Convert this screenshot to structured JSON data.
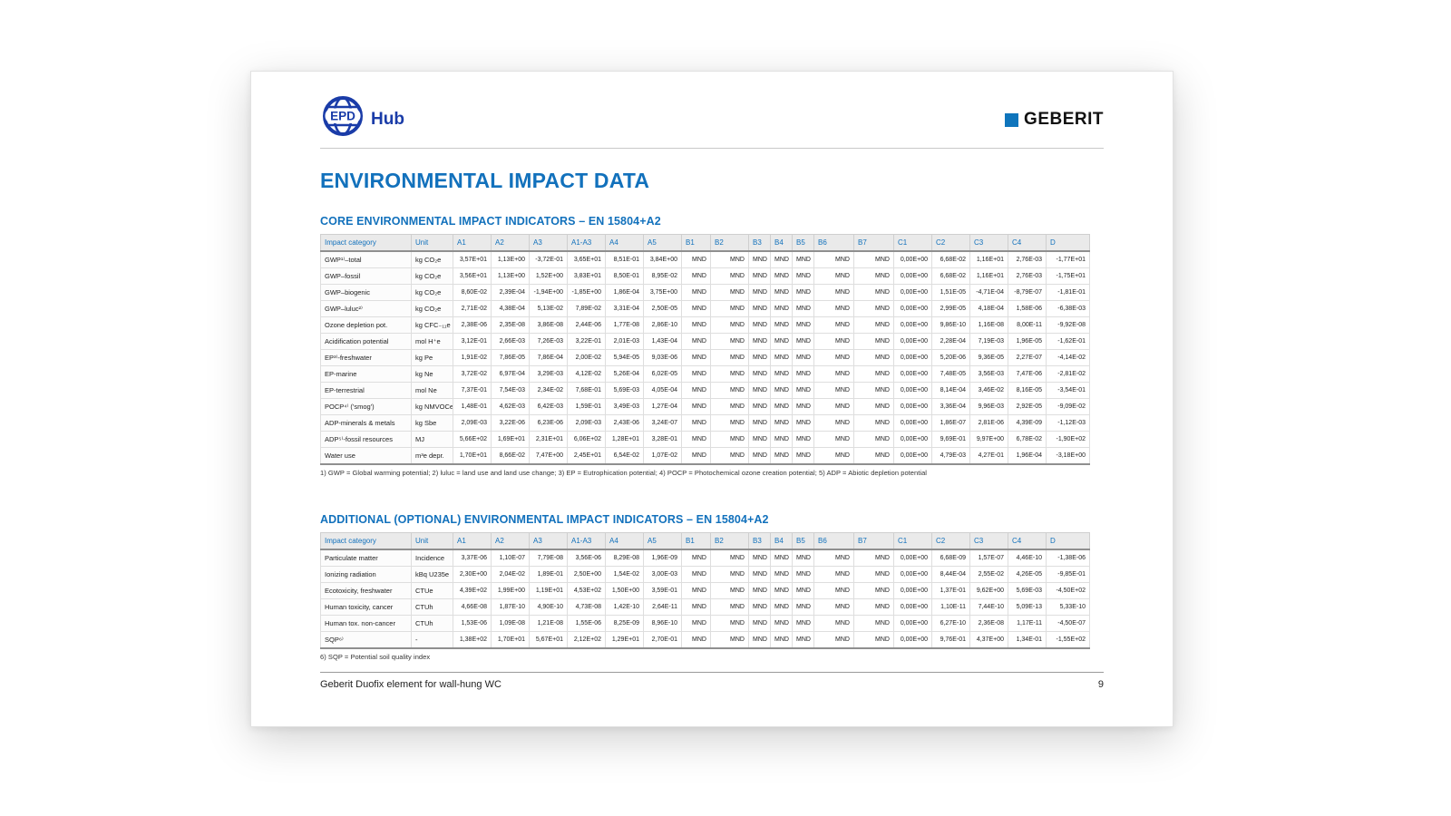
{
  "page": {
    "header": {
      "epd_logo": {
        "epd": "EPD",
        "hub": "Hub"
      },
      "brand": "GEBERIT"
    },
    "title": "ENVIRONMENTAL IMPACT DATA",
    "sections": [
      {
        "heading": "CORE ENVIRONMENTAL IMPACT INDICATORS – EN 15804+A2",
        "columns": [
          "Impact category",
          "Unit",
          "A1",
          "A2",
          "A3",
          "A1-A3",
          "A4",
          "A5",
          "B1",
          "B2",
          "B3",
          "B4",
          "B5",
          "B6",
          "B7",
          "C1",
          "C2",
          "C3",
          "C4",
          "D"
        ],
        "rows": [
          {
            "category": "GWP¹⁾–total",
            "unit": "kg CO₂e",
            "values": [
              "3,57E+01",
              "1,13E+00",
              "-3,72E-01",
              "3,65E+01",
              "8,51E-01",
              "3,84E+00",
              "MND",
              "MND",
              "MND",
              "MND",
              "MND",
              "MND",
              "MND",
              "0,00E+00",
              "6,68E-02",
              "1,16E+01",
              "2,76E-03",
              "-1,77E+01"
            ]
          },
          {
            "category": "GWP–fossil",
            "unit": "kg CO₂e",
            "values": [
              "3,56E+01",
              "1,13E+00",
              "1,52E+00",
              "3,83E+01",
              "8,50E-01",
              "8,95E-02",
              "MND",
              "MND",
              "MND",
              "MND",
              "MND",
              "MND",
              "MND",
              "0,00E+00",
              "6,68E-02",
              "1,16E+01",
              "2,76E-03",
              "-1,75E+01"
            ]
          },
          {
            "category": "GWP–biogenic",
            "unit": "kg CO₂e",
            "values": [
              "8,60E-02",
              "2,39E-04",
              "-1,94E+00",
              "-1,85E+00",
              "1,86E-04",
              "3,75E+00",
              "MND",
              "MND",
              "MND",
              "MND",
              "MND",
              "MND",
              "MND",
              "0,00E+00",
              "1,51E-05",
              "-4,71E-04",
              "-8,79E-07",
              "-1,81E-01"
            ]
          },
          {
            "category": "GWP–luluc²⁾",
            "unit": "kg CO₂e",
            "values": [
              "2,71E-02",
              "4,38E-04",
              "5,13E-02",
              "7,89E-02",
              "3,31E-04",
              "2,50E-05",
              "MND",
              "MND",
              "MND",
              "MND",
              "MND",
              "MND",
              "MND",
              "0,00E+00",
              "2,99E-05",
              "4,18E-04",
              "1,58E-06",
              "-6,38E-03"
            ]
          },
          {
            "category": "Ozone depletion pot.",
            "unit": "kg CFC₋₁₁e",
            "values": [
              "2,38E-06",
              "2,35E-08",
              "3,86E-08",
              "2,44E-06",
              "1,77E-08",
              "2,86E-10",
              "MND",
              "MND",
              "MND",
              "MND",
              "MND",
              "MND",
              "MND",
              "0,00E+00",
              "9,86E-10",
              "1,16E-08",
              "8,00E-11",
              "-9,92E-08"
            ]
          },
          {
            "category": "Acidification potential",
            "unit": "mol H⁺e",
            "values": [
              "3,12E-01",
              "2,66E-03",
              "7,26E-03",
              "3,22E-01",
              "2,01E-03",
              "1,43E-04",
              "MND",
              "MND",
              "MND",
              "MND",
              "MND",
              "MND",
              "MND",
              "0,00E+00",
              "2,28E-04",
              "7,19E-03",
              "1,96E-05",
              "-1,62E-01"
            ]
          },
          {
            "category": "EP³⁾-freshwater",
            "unit": "kg Pe",
            "values": [
              "1,91E-02",
              "7,86E-05",
              "7,86E-04",
              "2,00E-02",
              "5,94E-05",
              "9,03E-06",
              "MND",
              "MND",
              "MND",
              "MND",
              "MND",
              "MND",
              "MND",
              "0,00E+00",
              "5,20E-06",
              "9,36E-05",
              "2,27E-07",
              "-4,14E-02"
            ]
          },
          {
            "category": "EP-marine",
            "unit": "kg Ne",
            "values": [
              "3,72E-02",
              "6,97E-04",
              "3,29E-03",
              "4,12E-02",
              "5,26E-04",
              "6,02E-05",
              "MND",
              "MND",
              "MND",
              "MND",
              "MND",
              "MND",
              "MND",
              "0,00E+00",
              "7,48E-05",
              "3,56E-03",
              "7,47E-06",
              "-2,81E-02"
            ]
          },
          {
            "category": "EP-terrestrial",
            "unit": "mol Ne",
            "values": [
              "7,37E-01",
              "7,54E-03",
              "2,34E-02",
              "7,68E-01",
              "5,69E-03",
              "4,05E-04",
              "MND",
              "MND",
              "MND",
              "MND",
              "MND",
              "MND",
              "MND",
              "0,00E+00",
              "8,14E-04",
              "3,46E-02",
              "8,16E-05",
              "-3,54E-01"
            ]
          },
          {
            "category": "POCP⁴⁾ ('smog')",
            "unit": "kg NMVOCe",
            "values": [
              "1,48E-01",
              "4,62E-03",
              "6,42E-03",
              "1,59E-01",
              "3,49E-03",
              "1,27E-04",
              "MND",
              "MND",
              "MND",
              "MND",
              "MND",
              "MND",
              "MND",
              "0,00E+00",
              "3,36E-04",
              "9,96E-03",
              "2,92E-05",
              "-9,09E-02"
            ]
          },
          {
            "category": "ADP-minerals & metals",
            "unit": "kg Sbe",
            "values": [
              "2,09E-03",
              "3,22E-06",
              "6,23E-06",
              "2,09E-03",
              "2,43E-06",
              "3,24E-07",
              "MND",
              "MND",
              "MND",
              "MND",
              "MND",
              "MND",
              "MND",
              "0,00E+00",
              "1,86E-07",
              "2,81E-06",
              "4,39E-09",
              "-1,12E-03"
            ]
          },
          {
            "category": "ADP⁵⁾-fossil resources",
            "unit": "MJ",
            "values": [
              "5,66E+02",
              "1,69E+01",
              "2,31E+01",
              "6,06E+02",
              "1,28E+01",
              "3,28E-01",
              "MND",
              "MND",
              "MND",
              "MND",
              "MND",
              "MND",
              "MND",
              "0,00E+00",
              "9,69E-01",
              "9,97E+00",
              "6,78E-02",
              "-1,90E+02"
            ]
          },
          {
            "category": "Water use",
            "unit": "m³e depr.",
            "values": [
              "1,70E+01",
              "8,66E-02",
              "7,47E+00",
              "2,45E+01",
              "6,54E-02",
              "1,07E-02",
              "MND",
              "MND",
              "MND",
              "MND",
              "MND",
              "MND",
              "MND",
              "0,00E+00",
              "4,79E-03",
              "4,27E-01",
              "1,96E-04",
              "-3,18E+00"
            ]
          }
        ],
        "footnote": "1) GWP = Global warming potential; 2) luluc = land use and land use change; 3) EP = Eutrophication potential; 4) POCP = Photochemical ozone creation potential; 5) ADP = Abiotic depletion potential"
      },
      {
        "heading": "ADDITIONAL (OPTIONAL) ENVIRONMENTAL IMPACT INDICATORS – EN 15804+A2",
        "columns": [
          "Impact category",
          "Unit",
          "A1",
          "A2",
          "A3",
          "A1-A3",
          "A4",
          "A5",
          "B1",
          "B2",
          "B3",
          "B4",
          "B5",
          "B6",
          "B7",
          "C1",
          "C2",
          "C3",
          "C4",
          "D"
        ],
        "rows": [
          {
            "category": "Particulate matter",
            "unit": "Incidence",
            "values": [
              "3,37E-06",
              "1,10E-07",
              "7,79E-08",
              "3,56E-06",
              "8,29E-08",
              "1,96E-09",
              "MND",
              "MND",
              "MND",
              "MND",
              "MND",
              "MND",
              "MND",
              "0,00E+00",
              "6,68E-09",
              "1,57E-07",
              "4,46E-10",
              "-1,38E-06"
            ]
          },
          {
            "category": "Ionizing radiation",
            "unit": "kBq U235e",
            "values": [
              "2,30E+00",
              "2,04E-02",
              "1,89E-01",
              "2,50E+00",
              "1,54E-02",
              "3,00E-03",
              "MND",
              "MND",
              "MND",
              "MND",
              "MND",
              "MND",
              "MND",
              "0,00E+00",
              "8,44E-04",
              "2,55E-02",
              "4,26E-05",
              "-9,85E-01"
            ]
          },
          {
            "category": "Ecotoxicity, freshwater",
            "unit": "CTUe",
            "values": [
              "4,39E+02",
              "1,99E+00",
              "1,19E+01",
              "4,53E+02",
              "1,50E+00",
              "3,59E-01",
              "MND",
              "MND",
              "MND",
              "MND",
              "MND",
              "MND",
              "MND",
              "0,00E+00",
              "1,37E-01",
              "9,62E+00",
              "5,69E-03",
              "-4,50E+02"
            ]
          },
          {
            "category": "Human toxicity, cancer",
            "unit": "CTUh",
            "values": [
              "4,66E-08",
              "1,87E-10",
              "4,90E-10",
              "4,73E-08",
              "1,42E-10",
              "2,64E-11",
              "MND",
              "MND",
              "MND",
              "MND",
              "MND",
              "MND",
              "MND",
              "0,00E+00",
              "1,10E-11",
              "7,44E-10",
              "5,09E-13",
              "5,33E-10"
            ]
          },
          {
            "category": "Human tox. non-cancer",
            "unit": "CTUh",
            "values": [
              "1,53E-06",
              "1,09E-08",
              "1,21E-08",
              "1,55E-06",
              "8,25E-09",
              "8,96E-10",
              "MND",
              "MND",
              "MND",
              "MND",
              "MND",
              "MND",
              "MND",
              "0,00E+00",
              "6,27E-10",
              "2,36E-08",
              "1,17E-11",
              "-4,50E-07"
            ]
          },
          {
            "category": "SQP⁶⁾",
            "unit": "-",
            "values": [
              "1,38E+02",
              "1,70E+01",
              "5,67E+01",
              "2,12E+02",
              "1,29E+01",
              "2,70E-01",
              "MND",
              "MND",
              "MND",
              "MND",
              "MND",
              "MND",
              "MND",
              "0,00E+00",
              "9,76E-01",
              "4,37E+00",
              "1,34E-01",
              "-1,55E+02"
            ]
          }
        ],
        "footnote": "6) SQP = Potential soil quality index"
      }
    ],
    "footer": {
      "text": "Geberit Duofix element for wall-hung WC",
      "page_number": "9"
    },
    "colors": {
      "accent_blue": "#1271BC",
      "logo_blue": "#1A3CA8",
      "geberit_blue": "#0F75BC"
    }
  }
}
